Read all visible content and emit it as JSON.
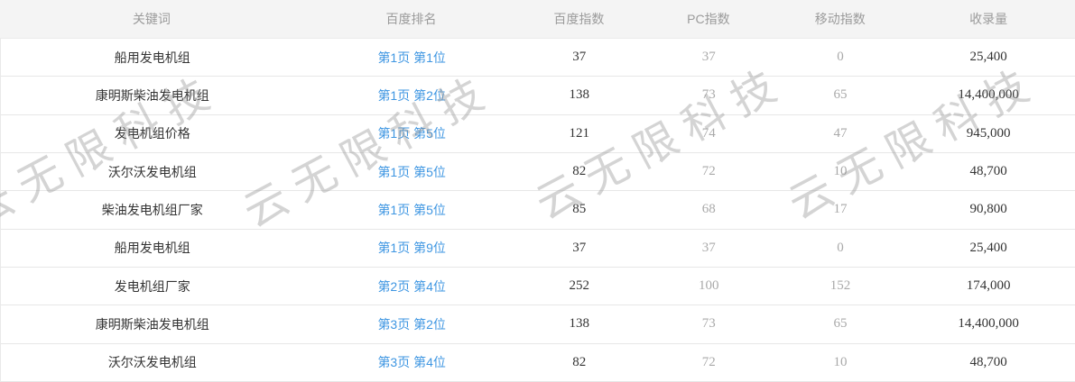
{
  "watermark": {
    "text": "云无限科技",
    "color": "#c9c9c9"
  },
  "colors": {
    "header_bg": "#f4f4f4",
    "header_text": "#9b9b9b",
    "row_border": "#e7e7e7",
    "link_blue": "#3e96e2",
    "value_dark": "#333333",
    "value_gray": "#a9a9a9"
  },
  "table": {
    "columns": [
      {
        "key": "keyword",
        "label": "关键词"
      },
      {
        "key": "rank",
        "label": "百度排名"
      },
      {
        "key": "baidu_index",
        "label": "百度指数"
      },
      {
        "key": "pc_index",
        "label": "PC指数"
      },
      {
        "key": "mobile_index",
        "label": "移动指数"
      },
      {
        "key": "inclusion",
        "label": "收录量"
      }
    ],
    "rows": [
      {
        "keyword": "船用发电机组",
        "rank": "第1页 第1位",
        "baidu_index": "37",
        "pc_index": "37",
        "mobile_index": "0",
        "inclusion": "25,400"
      },
      {
        "keyword": "康明斯柴油发电机组",
        "rank": "第1页 第2位",
        "baidu_index": "138",
        "pc_index": "73",
        "mobile_index": "65",
        "inclusion": "14,400,000"
      },
      {
        "keyword": "发电机组价格",
        "rank": "第1页 第5位",
        "baidu_index": "121",
        "pc_index": "74",
        "mobile_index": "47",
        "inclusion": "945,000"
      },
      {
        "keyword": "沃尔沃发电机组",
        "rank": "第1页 第5位",
        "baidu_index": "82",
        "pc_index": "72",
        "mobile_index": "10",
        "inclusion": "48,700"
      },
      {
        "keyword": "柴油发电机组厂家",
        "rank": "第1页 第5位",
        "baidu_index": "85",
        "pc_index": "68",
        "mobile_index": "17",
        "inclusion": "90,800"
      },
      {
        "keyword": "船用发电机组",
        "rank": "第1页 第9位",
        "baidu_index": "37",
        "pc_index": "37",
        "mobile_index": "0",
        "inclusion": "25,400"
      },
      {
        "keyword": "发电机组厂家",
        "rank": "第2页 第4位",
        "baidu_index": "252",
        "pc_index": "100",
        "mobile_index": "152",
        "inclusion": "174,000"
      },
      {
        "keyword": "康明斯柴油发电机组",
        "rank": "第3页 第2位",
        "baidu_index": "138",
        "pc_index": "73",
        "mobile_index": "65",
        "inclusion": "14,400,000"
      },
      {
        "keyword": "沃尔沃发电机组",
        "rank": "第3页 第4位",
        "baidu_index": "82",
        "pc_index": "72",
        "mobile_index": "10",
        "inclusion": "48,700"
      }
    ]
  }
}
